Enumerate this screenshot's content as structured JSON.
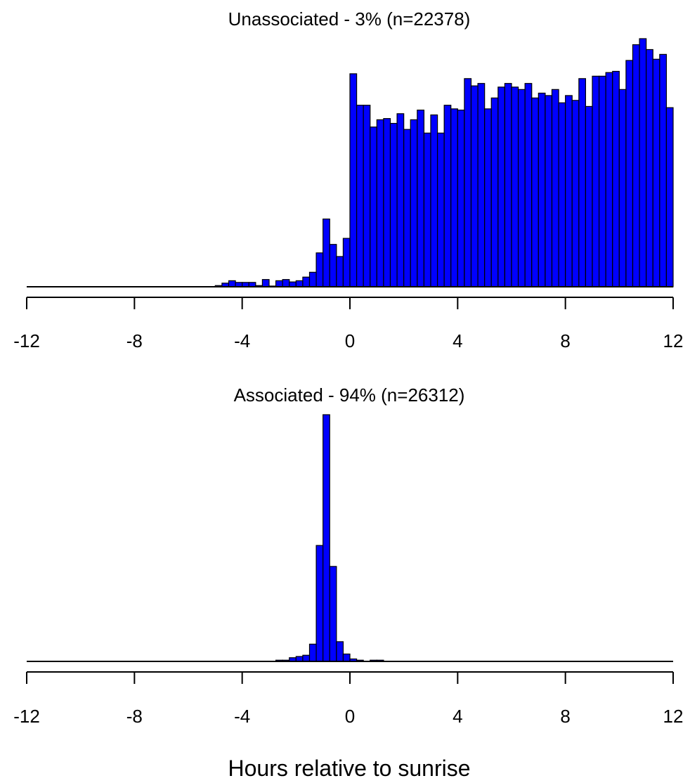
{
  "xlabel": "Hours relative to sunrise",
  "bar_color": "#0000FF",
  "chart_data": [
    {
      "type": "bar",
      "title": "Unassociated - 3% (n=22378)",
      "xlabel": "",
      "ylabel": "",
      "xlim": [
        -12,
        12
      ],
      "xticks": [
        "-12",
        "-8",
        "-4",
        "0",
        "4",
        "8",
        "12"
      ],
      "bin_width": 0.25,
      "bin_start": -5.0,
      "values": [
        0.5,
        1.5,
        2.5,
        1.8,
        1.8,
        1.8,
        0.5,
        3.0,
        0.3,
        2.5,
        3.0,
        2.0,
        2.5,
        4.0,
        6.0,
        14.0,
        28.0,
        17.5,
        12.5,
        20.0,
        88.0,
        75.0,
        75.0,
        66.0,
        69.0,
        69.5,
        67.5,
        71.5,
        65.0,
        69.0,
        73.0,
        63.5,
        71.0,
        63.5,
        75.0,
        73.5,
        73.0,
        86.0,
        83.0,
        84.0,
        73.5,
        78.0,
        82.5,
        84.0,
        82.5,
        81.5,
        84.0,
        78.0,
        80.0,
        79.0,
        81.5,
        76.0,
        79.0,
        77.0,
        86.0,
        74.5,
        87.0,
        87.0,
        88.5,
        89.0,
        81.5,
        93.5,
        100.0,
        102.5,
        98.0,
        94.0,
        96.0,
        74.0
      ]
    },
    {
      "type": "bar",
      "title": "Associated - 94% (n=26312)",
      "xlabel": "",
      "ylabel": "",
      "xlim": [
        -12,
        12
      ],
      "xticks": [
        "-12",
        "-8",
        "-4",
        "0",
        "4",
        "8",
        "12"
      ],
      "bin_width": 0.25,
      "bin_start": -2.75,
      "values": [
        0.5,
        0.5,
        1.5,
        2.0,
        2.5,
        7.0,
        47.0,
        100.0,
        38.5,
        8.0,
        3.0,
        1.0,
        0.5,
        0.0,
        0.5,
        0.5
      ]
    }
  ]
}
